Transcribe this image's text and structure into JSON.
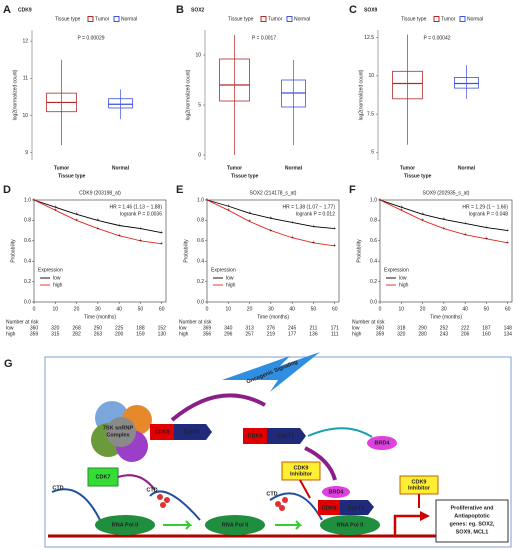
{
  "chart_data": [
    {
      "type": "box",
      "panel": "A",
      "title": "CDK9",
      "legend_title": "Tissue type",
      "annotation": "P = 0.00029",
      "ylabel": "log2(normalized count)",
      "xlabel": "Tissue type",
      "categories": [
        "Tumor",
        "Normal"
      ],
      "series": [
        {
          "name": "Tumor",
          "color": "#b5282a"
        },
        {
          "name": "Normal",
          "color": "#3f51e0"
        }
      ],
      "boxes": [
        {
          "min": 9.2,
          "q1": 10.1,
          "median": 10.35,
          "q3": 10.6,
          "max": 11.5
        },
        {
          "min": 9.9,
          "q1": 10.2,
          "median": 10.3,
          "q3": 10.45,
          "max": 10.7
        }
      ],
      "ylim": [
        8.8,
        12.3
      ],
      "yticks": [
        9,
        10,
        11,
        12
      ]
    },
    {
      "type": "box",
      "panel": "B",
      "title": "SOX2",
      "legend_title": "Tissue type",
      "annotation": "P = 0.0017",
      "ylabel": "log2(normalized count)",
      "xlabel": "Tissue type",
      "categories": [
        "Tumor",
        "Normal"
      ],
      "series": [
        {
          "name": "Tumor",
          "color": "#b5282a"
        },
        {
          "name": "Normal",
          "color": "#3f51e0"
        }
      ],
      "boxes": [
        {
          "min": 0,
          "q1": 5.4,
          "median": 7,
          "q3": 9.6,
          "max": 12
        },
        {
          "min": 1,
          "q1": 4.8,
          "median": 6.2,
          "q3": 7.5,
          "max": 9.5
        }
      ],
      "ylim": [
        -0.5,
        12.5
      ],
      "yticks": [
        0,
        5,
        10
      ]
    },
    {
      "type": "box",
      "panel": "C",
      "title": "SOX9",
      "legend_title": "Tissue type",
      "annotation": "P = 0.00042",
      "ylabel": "log2(normalized count)",
      "xlabel": "Tissue type",
      "categories": [
        "Tumor",
        "Normal"
      ],
      "series": [
        {
          "name": "Tumor",
          "color": "#b5282a"
        },
        {
          "name": "Normal",
          "color": "#3f51e0"
        }
      ],
      "boxes": [
        {
          "min": 5.5,
          "q1": 8.5,
          "median": 9.5,
          "q3": 10.3,
          "max": 12.7
        },
        {
          "min": 8.5,
          "q1": 9.2,
          "median": 9.5,
          "q3": 9.9,
          "max": 10.7
        }
      ],
      "ylim": [
        4.5,
        13
      ],
      "yticks": [
        5,
        7.5,
        10,
        12.5
      ]
    },
    {
      "type": "line",
      "panel": "D",
      "title": "CDK9 (203198_at)",
      "annotations": [
        "HR = 1.46 (1.13 − 1.88)",
        "logrank P = 0.0036"
      ],
      "xlabel": "Time (months)",
      "ylabel": "Probability",
      "legend_title": "Expression",
      "risk_title": "Number at risk",
      "x": [
        0,
        10,
        20,
        30,
        40,
        50,
        60
      ],
      "series": [
        {
          "name": "low",
          "color": "#000000",
          "values": [
            1,
            0.93,
            0.86,
            0.8,
            0.75,
            0.72,
            0.68
          ],
          "at_risk": [
            360,
            320,
            268,
            250,
            225,
            188,
            152
          ]
        },
        {
          "name": "high",
          "color": "#e8231f",
          "values": [
            1,
            0.9,
            0.8,
            0.72,
            0.65,
            0.6,
            0.57
          ],
          "at_risk": [
            359,
            315,
            282,
            263,
            200,
            159,
            130
          ]
        }
      ],
      "xlim": [
        0,
        62
      ],
      "xticks": [
        0,
        10,
        20,
        30,
        40,
        50,
        60
      ],
      "ylim": [
        0,
        1
      ],
      "yticks": [
        {
          "value": 0,
          "label": "0.0"
        },
        0.2,
        0.4,
        0.6,
        0.8,
        {
          "value": 1,
          "label": "1.0"
        }
      ]
    },
    {
      "type": "line",
      "panel": "E",
      "title": "SOX2 (214178_s_at)",
      "annotations": [
        "HR = 1.38 (1.07 − 1.77)",
        "logrank P = 0.012"
      ],
      "xlabel": "Time (months)",
      "ylabel": "Probability",
      "legend_title": "Expression",
      "risk_title": "Number at risk",
      "x": [
        0,
        10,
        20,
        30,
        40,
        50,
        60
      ],
      "series": [
        {
          "name": "low",
          "color": "#000000",
          "values": [
            1,
            0.94,
            0.87,
            0.82,
            0.78,
            0.74,
            0.72
          ],
          "at_risk": [
            369,
            340,
            313,
            276,
            245,
            211,
            171
          ]
        },
        {
          "name": "high",
          "color": "#e8231f",
          "values": [
            1,
            0.9,
            0.79,
            0.7,
            0.63,
            0.58,
            0.55
          ],
          "at_risk": [
            356,
            296,
            257,
            219,
            177,
            136,
            111
          ]
        }
      ],
      "xlim": [
        0,
        62
      ],
      "xticks": [
        0,
        10,
        20,
        30,
        40,
        50,
        60
      ],
      "ylim": [
        0,
        1
      ],
      "yticks": [
        {
          "value": 0,
          "label": "0.0"
        },
        0.2,
        0.4,
        0.6,
        0.8,
        {
          "value": 1,
          "label": "1.0"
        }
      ]
    },
    {
      "type": "line",
      "panel": "F",
      "title": "SOX9 (202935_s_at)",
      "annotations": [
        "HR = 1.29 (1 − 1.66)",
        "logrank P = 0.048"
      ],
      "xlabel": "Time (months)",
      "ylabel": "Probability",
      "legend_title": "Expression",
      "risk_title": "Number at risk",
      "x": [
        0,
        10,
        20,
        30,
        40,
        50,
        60
      ],
      "series": [
        {
          "name": "low",
          "color": "#000000",
          "values": [
            1,
            0.93,
            0.86,
            0.81,
            0.77,
            0.73,
            0.7
          ],
          "at_risk": [
            360,
            318,
            290,
            252,
            222,
            187,
            148
          ]
        },
        {
          "name": "high",
          "color": "#e8231f",
          "values": [
            1,
            0.9,
            0.8,
            0.72,
            0.66,
            0.62,
            0.58
          ],
          "at_risk": [
            359,
            320,
            280,
            243,
            206,
            160,
            134
          ]
        }
      ],
      "xlim": [
        0,
        62
      ],
      "xticks": [
        0,
        10,
        20,
        30,
        40,
        50,
        60
      ],
      "ylim": [
        0,
        1
      ],
      "yticks": [
        {
          "value": 0,
          "label": "0.0"
        },
        0.2,
        0.4,
        0.6,
        0.8,
        {
          "value": 1,
          "label": "1.0"
        }
      ]
    }
  ],
  "diagram": {
    "panel": "G",
    "complex": [
      "7SK snRNP",
      "Complex"
    ],
    "signaling": "Oncogenic Signaling",
    "cdk9": [
      "CDK9",
      "CDK9",
      "CDK9"
    ],
    "cyct1": [
      "CycT1",
      "CycT1",
      "CycT1"
    ],
    "brd4": [
      "BRD4",
      "BRD4"
    ],
    "cdk7": "CDK7",
    "ctd": [
      "CTD",
      "CTD",
      "CTD"
    ],
    "polii": [
      "RNA Pol II",
      "RNA Pol II",
      "RNA Pol II"
    ],
    "inhibitor": [
      [
        "CDK9",
        "Inhibitor"
      ],
      [
        "CDK9",
        "Inhibitor"
      ]
    ],
    "genes": [
      "Proliferative and",
      "Antiapoptotic",
      "genes: eg. SOX2,",
      "SOX9, MCL1"
    ]
  }
}
